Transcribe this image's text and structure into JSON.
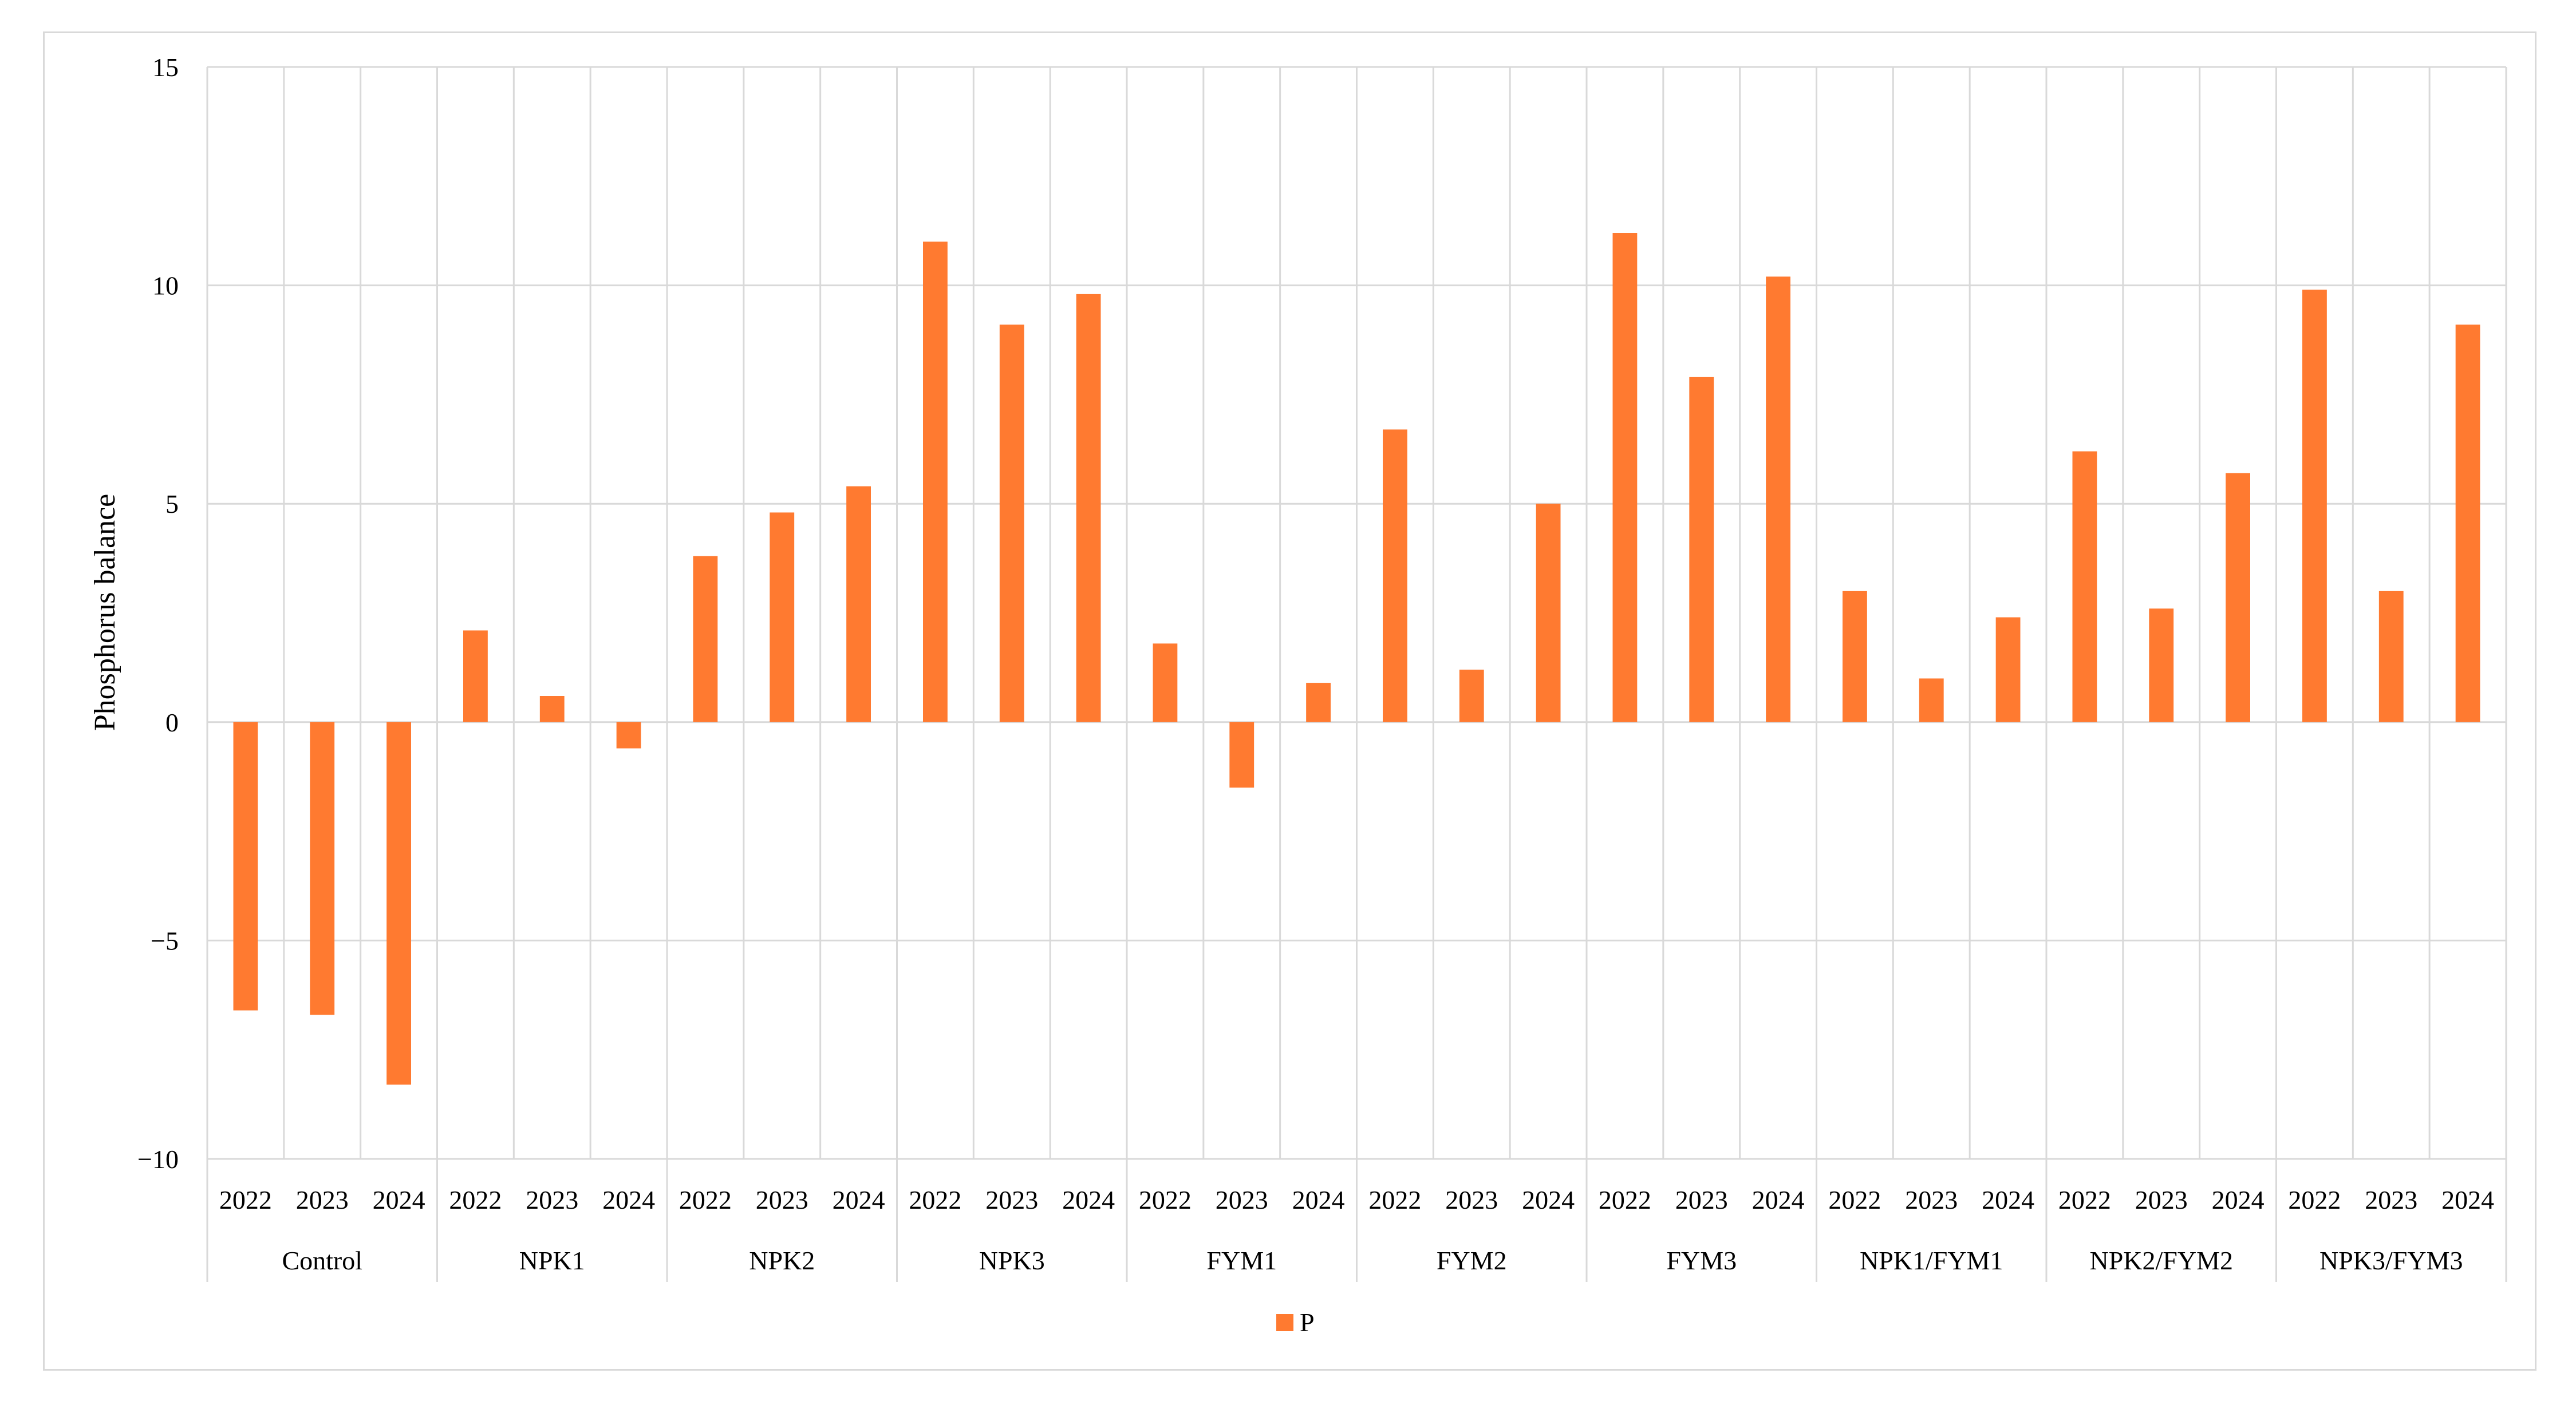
{
  "chart_data": {
    "type": "bar",
    "ylabel": "Phosphorus balance",
    "ylim": [
      -10,
      15
    ],
    "yticks": [
      -10,
      -5,
      0,
      5,
      10,
      15
    ],
    "ytick_labels": [
      "−10",
      "−5",
      "0",
      "5",
      "10",
      "15"
    ],
    "groups": [
      {
        "label": "Control",
        "years": [
          "2022",
          "2023",
          "2024"
        ],
        "values": [
          -6.6,
          -6.7,
          -8.3
        ]
      },
      {
        "label": "NPK1",
        "years": [
          "2022",
          "2023",
          "2024"
        ],
        "values": [
          2.1,
          0.6,
          -0.6
        ]
      },
      {
        "label": "NPK2",
        "years": [
          "2022",
          "2023",
          "2024"
        ],
        "values": [
          3.8,
          4.8,
          5.4
        ]
      },
      {
        "label": "NPK3",
        "years": [
          "2022",
          "2023",
          "2024"
        ],
        "values": [
          11.0,
          9.1,
          9.8
        ]
      },
      {
        "label": "FYM1",
        "years": [
          "2022",
          "2023",
          "2024"
        ],
        "values": [
          1.8,
          -1.5,
          0.9
        ]
      },
      {
        "label": "FYM2",
        "years": [
          "2022",
          "2023",
          "2024"
        ],
        "values": [
          6.7,
          1.2,
          5.0
        ]
      },
      {
        "label": "FYM3",
        "years": [
          "2022",
          "2023",
          "2024"
        ],
        "values": [
          11.2,
          7.9,
          10.2
        ]
      },
      {
        "label": "NPK1/FYM1",
        "years": [
          "2022",
          "2023",
          "2024"
        ],
        "values": [
          3.0,
          1.0,
          2.4
        ]
      },
      {
        "label": "NPK2/FYM2",
        "years": [
          "2022",
          "2023",
          "2024"
        ],
        "values": [
          6.2,
          2.6,
          5.7
        ]
      },
      {
        "label": "NPK3/FYM3",
        "years": [
          "2022",
          "2023",
          "2024"
        ],
        "values": [
          9.9,
          3.0,
          9.1
        ]
      }
    ],
    "series": [
      {
        "name": "P",
        "color": "#ff7a30"
      }
    ],
    "grid": true,
    "legend_position": "bottom-center"
  }
}
